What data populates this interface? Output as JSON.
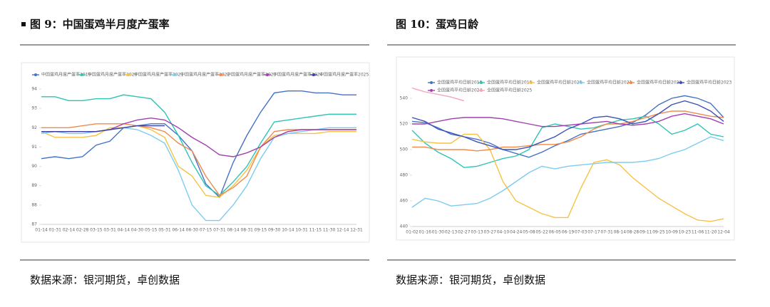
{
  "header": {
    "left_title": "图 9：中国蛋鸡半月度产蛋率",
    "right_title": "图 10：蛋鸡日龄"
  },
  "chart_data": [
    {
      "type": "line",
      "categories": [
        "01-14",
        "01-31",
        "02-14",
        "02-28",
        "03-15",
        "03-31",
        "04-14",
        "04-30",
        "05-15",
        "05-31",
        "06-14",
        "06-30",
        "07-15",
        "07-31",
        "08-14",
        "08-31",
        "09-15",
        "09-30",
        "10-14",
        "10-31",
        "11-15",
        "11-30",
        "12-14",
        "12-31"
      ],
      "ylim": [
        87,
        94
      ],
      "yticks": [
        87,
        88,
        89,
        90,
        91,
        92,
        93,
        94
      ],
      "series": [
        {
          "name": "中国蛋鸡月度产蛋率2019",
          "color": "#4472c4",
          "values": [
            90.4,
            90.5,
            90.4,
            90.5,
            91.1,
            91.3,
            92.0,
            92.1,
            92.2,
            92.2,
            91.6,
            90.8,
            89.1,
            88.4,
            90.2,
            91.6,
            92.8,
            93.8,
            93.9,
            93.9,
            93.8,
            93.8,
            93.7,
            93.7
          ]
        },
        {
          "name": "中国蛋鸡月度产蛋率2020",
          "color": "#2ec4b6",
          "values": [
            93.6,
            93.6,
            93.4,
            93.4,
            93.5,
            93.5,
            93.7,
            93.6,
            93.5,
            92.8,
            91.6,
            90.2,
            89.0,
            88.5,
            89.2,
            90.0,
            91.2,
            92.3,
            92.4,
            92.5,
            92.6,
            92.7,
            92.7,
            92.7
          ]
        },
        {
          "name": "中国蛋鸡月度产蛋率2021",
          "color": "#f6c244",
          "values": [
            91.8,
            91.5,
            91.5,
            91.5,
            91.6,
            92.0,
            92.0,
            92.1,
            91.9,
            91.5,
            90.0,
            89.5,
            88.5,
            88.4,
            89.0,
            89.8,
            91.0,
            91.6,
            91.7,
            91.7,
            91.7,
            91.8,
            91.8,
            91.8
          ]
        },
        {
          "name": "中国蛋鸡月度产蛋率2022",
          "color": "#7ecbf0",
          "values": [
            91.7,
            91.8,
            91.7,
            91.7,
            91.8,
            91.9,
            92.0,
            91.9,
            91.6,
            91.2,
            89.8,
            88.0,
            87.2,
            87.2,
            88.0,
            89.0,
            90.4,
            91.5,
            91.7,
            91.8,
            91.9,
            92.0,
            92.0,
            92.0
          ]
        },
        {
          "name": "中国蛋鸡月度产蛋率2023",
          "color": "#f08a4b",
          "values": [
            92.0,
            92.0,
            92.0,
            92.1,
            92.2,
            92.2,
            92.2,
            92.1,
            92.0,
            91.8,
            91.2,
            90.8,
            89.5,
            88.5,
            88.9,
            89.5,
            91.0,
            91.8,
            91.9,
            91.9,
            91.9,
            91.9,
            91.9,
            91.9
          ]
        },
        {
          "name": "中国蛋鸡月度产蛋率2024",
          "color": "#a040b0",
          "values": [
            91.8,
            91.8,
            91.8,
            91.8,
            91.8,
            91.9,
            92.2,
            92.4,
            92.5,
            92.4,
            92.0,
            91.5,
            91.1,
            90.6,
            90.5,
            90.7,
            91.0,
            91.5,
            91.8,
            91.9,
            91.9,
            91.9,
            91.9,
            91.9
          ]
        },
        {
          "name": "中国蛋鸡月度产蛋率2025",
          "color": "#3f3fa0",
          "values": [
            91.8,
            91.8,
            91.8,
            91.8,
            91.8,
            91.9,
            92.0,
            92.1,
            92.1,
            92.1,
            null,
            null,
            null,
            null,
            null,
            null,
            null,
            null,
            null,
            null,
            null,
            null,
            null,
            null
          ]
        }
      ]
    },
    {
      "type": "line",
      "categories": [
        "01-02",
        "01-16",
        "01-30",
        "02-13",
        "02-27",
        "03-13",
        "03-27",
        "04-10",
        "04-24",
        "05-08",
        "05-22",
        "06-05",
        "06-19",
        "07-03",
        "07-17",
        "07-31",
        "08-14",
        "08-28",
        "09-11",
        "09-25",
        "10-09",
        "10-23",
        "11-06",
        "11-20",
        "12-04"
      ],
      "ylim": [
        440,
        550
      ],
      "yticks": [
        440,
        460,
        480,
        500,
        520,
        540
      ],
      "series": [
        {
          "name": "全国蛋鸡平均日龄2018",
          "color": "#4472c4",
          "values": [
            522,
            521,
            517,
            512,
            510,
            508,
            505,
            500,
            497,
            494,
            498,
            503,
            507,
            512,
            514,
            516,
            518,
            521,
            527,
            535,
            540,
            542,
            540,
            536,
            525
          ]
        },
        {
          "name": "全国蛋鸡平均日龄2019",
          "color": "#2ec4b6",
          "values": [
            515,
            505,
            498,
            493,
            486,
            487,
            490,
            493,
            495,
            500,
            517,
            520,
            518,
            516,
            517,
            520,
            523,
            524,
            526,
            520,
            512,
            515,
            520,
            512,
            510
          ]
        },
        {
          "name": "全国蛋鸡平均日龄2020",
          "color": "#f6c244",
          "values": [
            508,
            506,
            505,
            505,
            512,
            512,
            500,
            475,
            460,
            455,
            450,
            447,
            447,
            470,
            490,
            492,
            488,
            478,
            470,
            462,
            456,
            450,
            445,
            444,
            446
          ]
        },
        {
          "name": "全国蛋鸡平均日龄2021",
          "color": "#7ecbf0",
          "values": [
            455,
            462,
            460,
            456,
            457,
            458,
            462,
            468,
            475,
            482,
            487,
            485,
            487,
            488,
            489,
            490,
            490,
            490,
            491,
            493,
            497,
            500,
            505,
            510,
            507
          ]
        },
        {
          "name": "全国蛋鸡平均日龄2022",
          "color": "#f08a4b",
          "values": [
            502,
            502,
            500,
            500,
            500,
            499,
            500,
            502,
            502,
            503,
            504,
            504,
            506,
            510,
            516,
            520,
            520,
            522,
            525,
            528,
            530,
            530,
            528,
            526,
            525
          ]
        },
        {
          "name": "全国蛋鸡平均日龄2023",
          "color": "#3f51b5",
          "values": [
            525,
            522,
            516,
            513,
            510,
            506,
            503,
            500,
            500,
            502,
            506,
            510,
            516,
            520,
            525,
            526,
            524,
            520,
            522,
            528,
            535,
            538,
            535,
            530,
            522
          ]
        },
        {
          "name": "全国蛋鸡平均日龄2024",
          "color": "#a040b0",
          "values": [
            520,
            520,
            522,
            524,
            525,
            525,
            525,
            524,
            522,
            520,
            518,
            518,
            519,
            520,
            521,
            522,
            520,
            519,
            520,
            522,
            526,
            528,
            526,
            524,
            520
          ]
        },
        {
          "name": "全国蛋鸡平均日龄2025",
          "color": "#f4a6b8",
          "values": [
            548,
            545,
            543,
            541,
            538,
            null,
            null,
            null,
            null,
            null,
            null,
            null,
            null,
            null,
            null,
            null,
            null,
            null,
            null,
            null,
            null,
            null,
            null,
            null,
            null
          ]
        }
      ]
    }
  ],
  "sources": {
    "left": "数据来源：银河期货，卓创数据",
    "right": "数据来源：银河期货，卓创数据"
  }
}
